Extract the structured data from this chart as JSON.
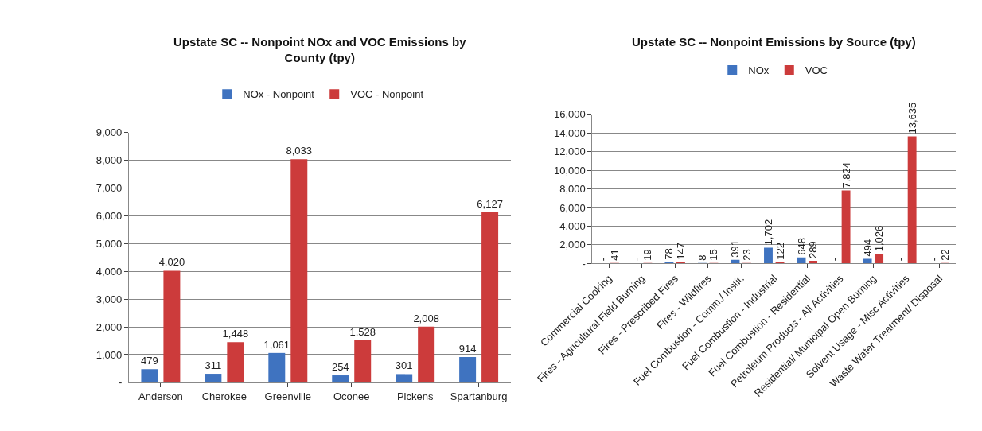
{
  "chart_data": [
    {
      "type": "bar",
      "title": "Upstate SC -- Nonpoint NOx and VOC Emissions by County (tpy)",
      "categories": [
        "Anderson",
        "Cherokee",
        "Greenville",
        "Oconee",
        "Pickens",
        "Spartanburg"
      ],
      "series": [
        {
          "name": "NOx - Nonpoint",
          "color": "#3f73c0",
          "values": [
            479,
            311,
            1061,
            254,
            301,
            914
          ],
          "value_labels": [
            "479",
            "311",
            "1,061",
            "254",
            "301",
            "914"
          ]
        },
        {
          "name": "VOC - Nonpoint",
          "color": "#cc3b3b",
          "values": [
            4020,
            1448,
            8033,
            1528,
            2008,
            6127
          ],
          "value_labels": [
            "4,020",
            "1,448",
            "8,033",
            "1,528",
            "2,008",
            "6,127"
          ]
        }
      ],
      "ylim": [
        0,
        9000
      ],
      "yticks": [
        {
          "value": 0,
          "label": "-"
        },
        {
          "value": 1000,
          "label": "1,000"
        },
        {
          "value": 2000,
          "label": "2,000"
        },
        {
          "value": 3000,
          "label": "3,000"
        },
        {
          "value": 4000,
          "label": "4,000"
        },
        {
          "value": 5000,
          "label": "5,000"
        },
        {
          "value": 6000,
          "label": "6,000"
        },
        {
          "value": 7000,
          "label": "7,000"
        },
        {
          "value": 8000,
          "label": "8,000"
        },
        {
          "value": 9000,
          "label": "9,000"
        }
      ],
      "grid": "y",
      "legend": "top"
    },
    {
      "type": "bar",
      "title": "Upstate SC -- Nonpoint Emissions by Source (tpy)",
      "categories": [
        "Commercial Cooking",
        "Fires - Agricultural Field Burning",
        "Fires - Prescribed Fires",
        "Fires - Wildfires",
        "Fuel Combustion - Comm./ Instit.",
        "Fuel Combustion - Industrial",
        "Fuel Combustion - Residential",
        "Petroleum Products - All Activities",
        "Residential/ Municipal Open Burning",
        "Solvent Usage - Misc Activities",
        "Waste Water Treatment/ Disposal"
      ],
      "series": [
        {
          "name": "NOx",
          "color": "#3f73c0",
          "values": [
            0,
            0,
            78,
            8,
            391,
            1702,
            648,
            0,
            494,
            0,
            0
          ],
          "value_labels": [
            "-",
            "-",
            "78",
            "8",
            "391",
            "1,702",
            "648",
            "-",
            "494",
            "-",
            "-"
          ]
        },
        {
          "name": "VOC",
          "color": "#cc3b3b",
          "values": [
            41,
            19,
            147,
            15,
            23,
            122,
            289,
            7824,
            1026,
            13635,
            22
          ],
          "value_labels": [
            "41",
            "19",
            "147",
            "15",
            "23",
            "122",
            "289",
            "7,824",
            "1,026",
            "13,635",
            "22"
          ]
        }
      ],
      "ylim": [
        0,
        16000
      ],
      "yticks": [
        {
          "value": 0,
          "label": "-"
        },
        {
          "value": 2000,
          "label": "2,000"
        },
        {
          "value": 4000,
          "label": "4,000"
        },
        {
          "value": 6000,
          "label": "6,000"
        },
        {
          "value": 8000,
          "label": "8,000"
        },
        {
          "value": 10000,
          "label": "10,000"
        },
        {
          "value": 12000,
          "label": "12,000"
        },
        {
          "value": 14000,
          "label": "14,000"
        },
        {
          "value": 16000,
          "label": "16,000"
        }
      ],
      "grid": "y",
      "legend": "top"
    }
  ]
}
